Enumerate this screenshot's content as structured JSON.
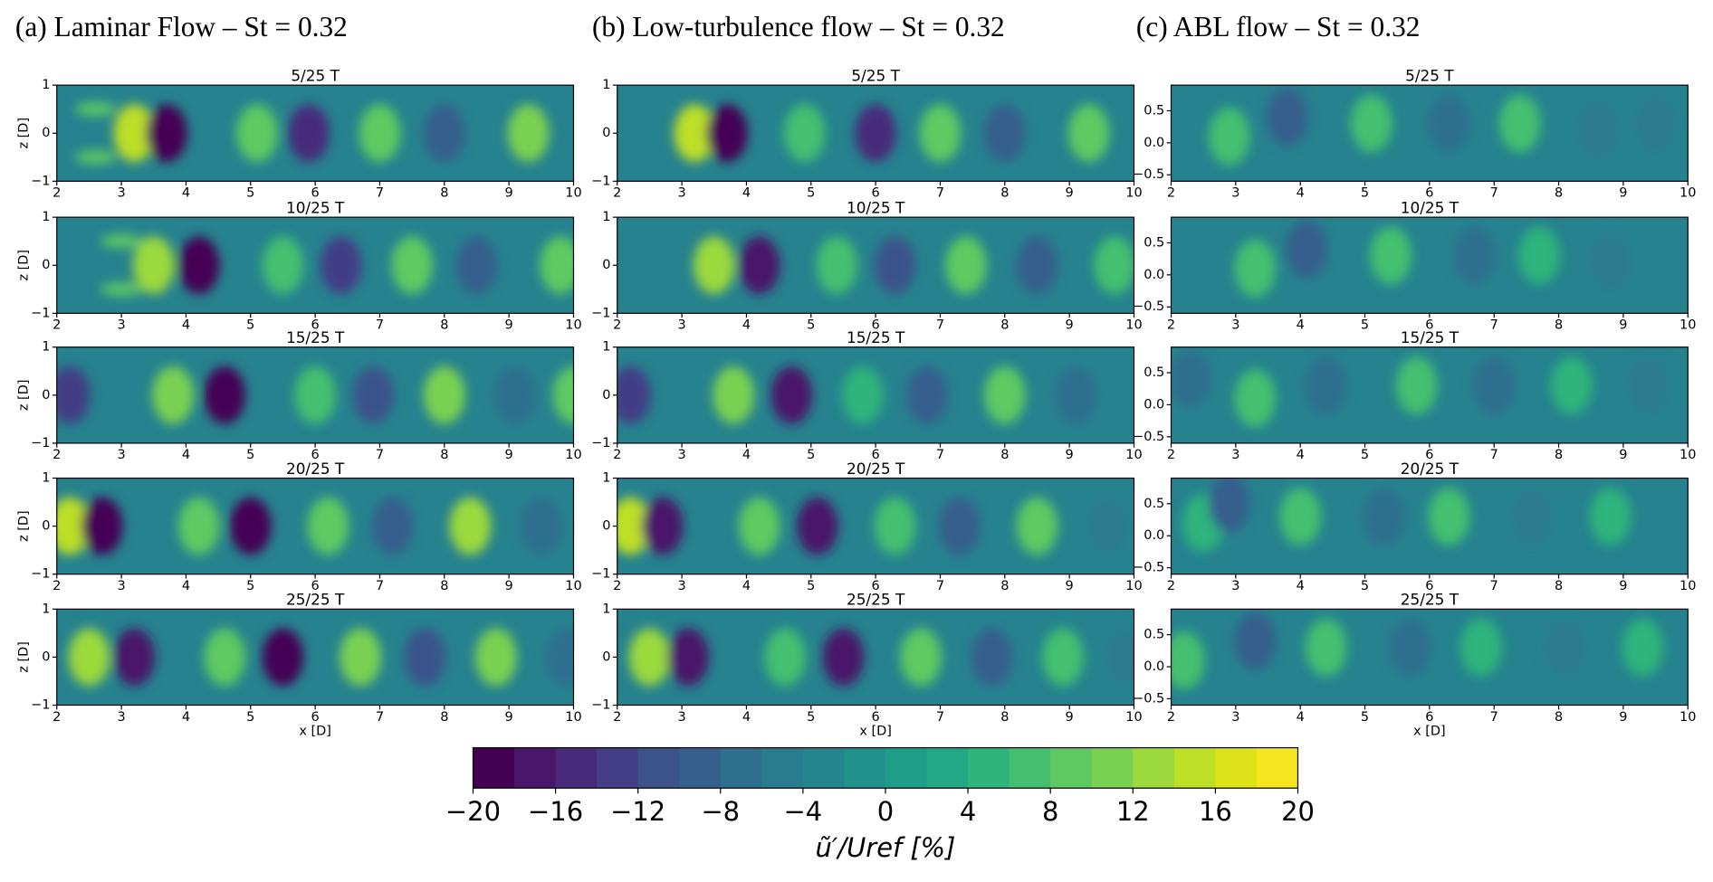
{
  "column_titles": [
    "(a) Laminar Flow – St = 0.32",
    "(b) Low-turbulence flow – St = 0.32",
    "(c) ABL flow – St = 0.32"
  ],
  "chart_data": [
    {
      "type": "contour",
      "title": "5/25 T",
      "ylabel": "z [D]",
      "xlim": [
        2,
        10
      ],
      "ylim": [
        -1,
        1
      ],
      "xticks": [
        2,
        3,
        4,
        5,
        6,
        7,
        8,
        9,
        10
      ],
      "yticks": [
        {
          "value": -1,
          "label": "−1"
        },
        0,
        1
      ],
      "cores": [
        [
          3.2,
          0,
          14
        ],
        [
          3.7,
          0,
          -20
        ],
        [
          5.1,
          0,
          8
        ],
        [
          5.9,
          0,
          -16
        ],
        [
          7.0,
          0,
          8
        ],
        [
          8.0,
          0,
          -10
        ],
        [
          9.3,
          0,
          10
        ],
        [
          2.6,
          0.5,
          8
        ],
        [
          2.6,
          -0.5,
          8
        ]
      ]
    },
    {
      "type": "contour",
      "title": "5/25 T",
      "xlim": [
        2,
        10
      ],
      "ylim": [
        -1,
        1
      ],
      "xticks": [
        2,
        3,
        4,
        5,
        6,
        7,
        8,
        9,
        10
      ],
      "yticks": [
        {
          "value": -1,
          "label": "−1"
        },
        0,
        1
      ],
      "cores": [
        [
          3.2,
          0,
          14
        ],
        [
          3.7,
          0,
          -20
        ],
        [
          4.9,
          0,
          6
        ],
        [
          6.0,
          0,
          -16
        ],
        [
          7.0,
          0,
          8
        ],
        [
          8.0,
          0,
          -10
        ],
        [
          9.3,
          0,
          8
        ]
      ]
    },
    {
      "type": "contour",
      "title": "5/25 T",
      "xlim": [
        2,
        10
      ],
      "ylim": [
        -0.6,
        0.9
      ],
      "xticks": [
        2,
        3,
        4,
        5,
        6,
        7,
        8,
        9,
        10
      ],
      "yticks": [
        {
          "value": -0.5,
          "label": "−0.5"
        },
        {
          "value": 0,
          "label": "0.0"
        },
        0.5
      ],
      "cores": [
        [
          2.9,
          0.1,
          6
        ],
        [
          3.8,
          0.4,
          -10
        ],
        [
          5.1,
          0.3,
          6
        ],
        [
          6.3,
          0.3,
          -8
        ],
        [
          7.4,
          0.3,
          6
        ],
        [
          8.6,
          0.2,
          -6
        ],
        [
          9.5,
          0.3,
          -6
        ]
      ]
    },
    {
      "type": "contour",
      "title": "10/25 T",
      "ylabel": "z [D]",
      "xlim": [
        2,
        10
      ],
      "ylim": [
        -1,
        1
      ],
      "xticks": [
        2,
        3,
        4,
        5,
        6,
        7,
        8,
        9,
        10
      ],
      "yticks": [
        {
          "value": -1,
          "label": "−1"
        },
        0,
        1
      ],
      "cores": [
        [
          3.5,
          0,
          12
        ],
        [
          4.2,
          0,
          -20
        ],
        [
          5.5,
          0,
          6
        ],
        [
          6.4,
          0,
          -14
        ],
        [
          7.5,
          0,
          8
        ],
        [
          8.5,
          0,
          -10
        ],
        [
          9.8,
          0,
          8
        ],
        [
          3.0,
          0.5,
          8
        ],
        [
          3.0,
          -0.5,
          8
        ]
      ]
    },
    {
      "type": "contour",
      "title": "10/25 T",
      "xlim": [
        2,
        10
      ],
      "ylim": [
        -1,
        1
      ],
      "xticks": [
        2,
        3,
        4,
        5,
        6,
        7,
        8,
        9,
        10
      ],
      "yticks": [
        {
          "value": -1,
          "label": "−1"
        },
        0,
        1
      ],
      "cores": [
        [
          3.5,
          0,
          12
        ],
        [
          4.2,
          0,
          -18
        ],
        [
          5.4,
          0,
          6
        ],
        [
          6.3,
          0,
          -12
        ],
        [
          7.4,
          0,
          8
        ],
        [
          8.5,
          0,
          -10
        ],
        [
          9.7,
          0,
          6
        ]
      ]
    },
    {
      "type": "contour",
      "title": "10/25 T",
      "xlim": [
        2,
        10
      ],
      "ylim": [
        -0.6,
        0.9
      ],
      "xticks": [
        2,
        3,
        4,
        5,
        6,
        7,
        8,
        9,
        10
      ],
      "yticks": [
        {
          "value": -0.5,
          "label": "−0.5"
        },
        {
          "value": 0,
          "label": "0.0"
        },
        0.5
      ],
      "cores": [
        [
          3.3,
          0.1,
          6
        ],
        [
          4.1,
          0.4,
          -10
        ],
        [
          5.4,
          0.3,
          6
        ],
        [
          6.7,
          0.3,
          -8
        ],
        [
          7.7,
          0.3,
          4
        ],
        [
          8.8,
          0.2,
          -6
        ]
      ]
    },
    {
      "type": "contour",
      "title": "15/25 T",
      "ylabel": "z [D]",
      "xlim": [
        2,
        10
      ],
      "ylim": [
        -1,
        1
      ],
      "xticks": [
        2,
        3,
        4,
        5,
        6,
        7,
        8,
        9,
        10
      ],
      "yticks": [
        {
          "value": -1,
          "label": "−1"
        },
        0,
        1
      ],
      "cores": [
        [
          2.2,
          0,
          -14
        ],
        [
          3.8,
          0,
          10
        ],
        [
          4.6,
          0,
          -20
        ],
        [
          6.0,
          0,
          6
        ],
        [
          6.9,
          0,
          -12
        ],
        [
          8.0,
          0,
          10
        ],
        [
          9.1,
          0,
          -8
        ],
        [
          10,
          0,
          8
        ]
      ]
    },
    {
      "type": "contour",
      "title": "15/25 T",
      "xlim": [
        2,
        10
      ],
      "ylim": [
        -1,
        1
      ],
      "xticks": [
        2,
        3,
        4,
        5,
        6,
        7,
        8,
        9,
        10
      ],
      "yticks": [
        {
          "value": -1,
          "label": "−1"
        },
        0,
        1
      ],
      "cores": [
        [
          2.2,
          0,
          -14
        ],
        [
          3.8,
          0,
          10
        ],
        [
          4.7,
          0,
          -18
        ],
        [
          5.8,
          0,
          4
        ],
        [
          6.8,
          0,
          -10
        ],
        [
          8.0,
          0,
          8
        ],
        [
          9.1,
          0,
          -8
        ]
      ]
    },
    {
      "type": "contour",
      "title": "15/25 T",
      "xlim": [
        2,
        10
      ],
      "ylim": [
        -0.6,
        0.9
      ],
      "xticks": [
        2,
        3,
        4,
        5,
        6,
        7,
        8,
        9,
        10
      ],
      "yticks": [
        {
          "value": -0.5,
          "label": "−0.5"
        },
        {
          "value": 0,
          "label": "0.0"
        },
        0.5
      ],
      "cores": [
        [
          2.3,
          0.4,
          -8
        ],
        [
          3.3,
          0.1,
          6
        ],
        [
          4.4,
          0.3,
          -8
        ],
        [
          5.8,
          0.3,
          6
        ],
        [
          7.0,
          0.3,
          -8
        ],
        [
          8.2,
          0.3,
          4
        ],
        [
          9.4,
          0.3,
          -6
        ]
      ]
    },
    {
      "type": "contour",
      "title": "20/25 T",
      "ylabel": "z [D]",
      "xlim": [
        2,
        10
      ],
      "ylim": [
        -1,
        1
      ],
      "xticks": [
        2,
        3,
        4,
        5,
        6,
        7,
        8,
        9,
        10
      ],
      "yticks": [
        {
          "value": -1,
          "label": "−1"
        },
        0,
        1
      ],
      "cores": [
        [
          2.2,
          0,
          14
        ],
        [
          2.7,
          0,
          -20
        ],
        [
          4.2,
          0,
          8
        ],
        [
          5.0,
          0,
          -20
        ],
        [
          6.2,
          0,
          8
        ],
        [
          7.2,
          0,
          -10
        ],
        [
          8.4,
          0,
          12
        ],
        [
          9.5,
          0,
          -8
        ]
      ]
    },
    {
      "type": "contour",
      "title": "20/25 T",
      "xlim": [
        2,
        10
      ],
      "ylim": [
        -1,
        1
      ],
      "xticks": [
        2,
        3,
        4,
        5,
        6,
        7,
        8,
        9,
        10
      ],
      "yticks": [
        {
          "value": -1,
          "label": "−1"
        },
        0,
        1
      ],
      "cores": [
        [
          2.2,
          0,
          14
        ],
        [
          2.7,
          0,
          -18
        ],
        [
          4.2,
          0,
          8
        ],
        [
          5.1,
          0,
          -18
        ],
        [
          6.3,
          0,
          6
        ],
        [
          7.3,
          0,
          -10
        ],
        [
          8.5,
          0,
          8
        ],
        [
          9.6,
          0,
          -6
        ]
      ]
    },
    {
      "type": "contour",
      "title": "20/25 T",
      "xlim": [
        2,
        10
      ],
      "ylim": [
        -0.6,
        0.9
      ],
      "xticks": [
        2,
        3,
        4,
        5,
        6,
        7,
        8,
        9,
        10
      ],
      "yticks": [
        {
          "value": -0.5,
          "label": "−0.5"
        },
        {
          "value": 0,
          "label": "0.0"
        },
        0.5
      ],
      "cores": [
        [
          2.5,
          0.2,
          4
        ],
        [
          2.9,
          0.5,
          -10
        ],
        [
          4.0,
          0.3,
          6
        ],
        [
          5.3,
          0.3,
          -8
        ],
        [
          6.3,
          0.3,
          6
        ],
        [
          7.6,
          0.3,
          -6
        ],
        [
          8.8,
          0.3,
          4
        ]
      ]
    },
    {
      "type": "contour",
      "title": "25/25 T",
      "ylabel": "z [D]",
      "xlabel": "x [D]",
      "xlim": [
        2,
        10
      ],
      "ylim": [
        -1,
        1
      ],
      "xticks": [
        2,
        3,
        4,
        5,
        6,
        7,
        8,
        9,
        10
      ],
      "yticks": [
        {
          "value": -1,
          "label": "−1"
        },
        0,
        1
      ],
      "cores": [
        [
          2.5,
          0,
          12
        ],
        [
          3.2,
          0,
          -18
        ],
        [
          4.6,
          0,
          8
        ],
        [
          5.5,
          0,
          -20
        ],
        [
          6.7,
          0,
          10
        ],
        [
          7.7,
          0,
          -12
        ],
        [
          8.8,
          0,
          10
        ],
        [
          9.9,
          0,
          -8
        ]
      ]
    },
    {
      "type": "contour",
      "title": "25/25 T",
      "xlabel": "x [D]",
      "xlim": [
        2,
        10
      ],
      "ylim": [
        -1,
        1
      ],
      "xticks": [
        2,
        3,
        4,
        5,
        6,
        7,
        8,
        9,
        10
      ],
      "yticks": [
        {
          "value": -1,
          "label": "−1"
        },
        0,
        1
      ],
      "cores": [
        [
          2.5,
          0,
          12
        ],
        [
          3.1,
          0,
          -18
        ],
        [
          4.6,
          0,
          6
        ],
        [
          5.5,
          0,
          -18
        ],
        [
          6.7,
          0,
          8
        ],
        [
          7.8,
          0,
          -10
        ],
        [
          8.9,
          0,
          6
        ],
        [
          9.9,
          0,
          -6
        ]
      ]
    },
    {
      "type": "contour",
      "title": "25/25 T",
      "xlabel": "x [D]",
      "xlim": [
        2,
        10
      ],
      "ylim": [
        -0.6,
        0.9
      ],
      "xticks": [
        2,
        3,
        4,
        5,
        6,
        7,
        8,
        9,
        10
      ],
      "yticks": [
        {
          "value": -0.5,
          "label": "−0.5"
        },
        {
          "value": 0,
          "label": "0.0"
        },
        0.5
      ],
      "cores": [
        [
          2.2,
          0.1,
          6
        ],
        [
          3.3,
          0.4,
          -10
        ],
        [
          4.4,
          0.3,
          6
        ],
        [
          5.7,
          0.3,
          -8
        ],
        [
          6.8,
          0.3,
          4
        ],
        [
          8.1,
          0.3,
          -6
        ],
        [
          9.3,
          0.3,
          4
        ]
      ]
    }
  ],
  "colorbar": {
    "label": "ũ′/Uref [%]",
    "lim": [
      -20,
      20
    ],
    "colors": [
      "#440154",
      "#481769",
      "#472a7a",
      "#433e85",
      "#3b528b",
      "#355f8d",
      "#2e6e8e",
      "#297b8e",
      "#25858e",
      "#21918c",
      "#1e9d89",
      "#22a884",
      "#2fb47c",
      "#44bf70",
      "#5ec962",
      "#7ad151",
      "#9bd93c",
      "#bddf26",
      "#dde318",
      "#f6e620"
    ],
    "ticks": [
      {
        "value": -20,
        "label": "−20"
      },
      {
        "value": -16,
        "label": "−16"
      },
      {
        "value": -12,
        "label": "−12"
      },
      {
        "value": -8,
        "label": "−8"
      },
      {
        "value": -4,
        "label": "−4"
      },
      0,
      4,
      8,
      12,
      16,
      20
    ]
  }
}
